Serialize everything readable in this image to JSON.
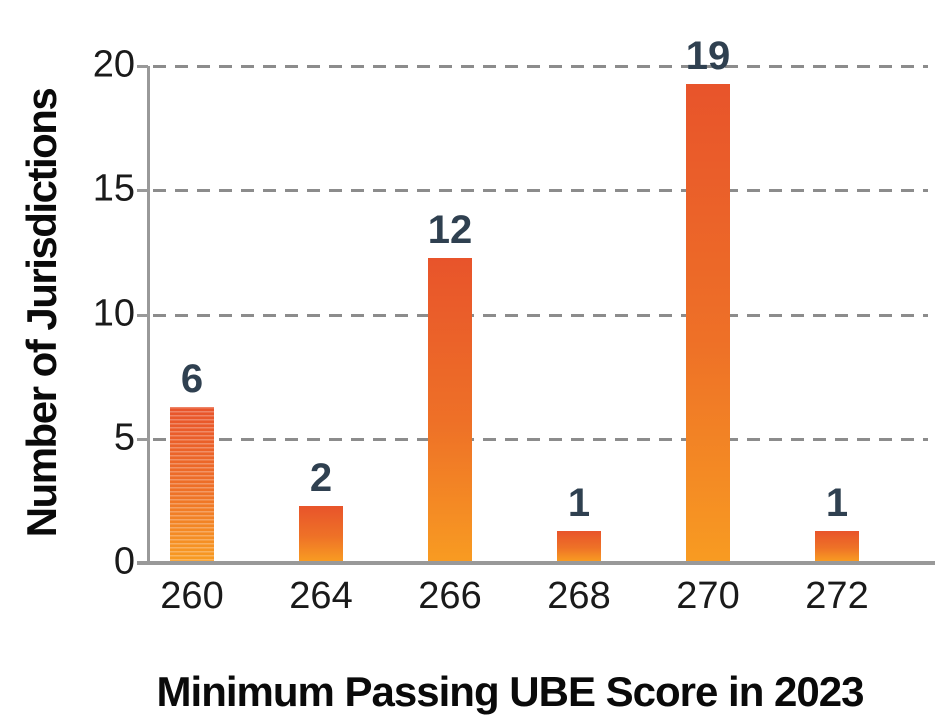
{
  "chart_data": {
    "type": "bar",
    "title": "",
    "categories": [
      "260",
      "264",
      "266",
      "268",
      "270",
      "272"
    ],
    "values": [
      6,
      2,
      12,
      1,
      19,
      1
    ],
    "data_labels": [
      "6",
      "2",
      "12",
      "1",
      "19",
      "1"
    ],
    "xlabel": "Minimum Passing UBE Score in 2023",
    "ylabel": "Number of Jurisdictions",
    "y_ticks": [
      0,
      5,
      10,
      15,
      20
    ],
    "ylim": [
      0,
      20
    ],
    "grid": "horizontal-dashed",
    "legend": "none",
    "colors": {
      "bar_gradient_top": "#e8542b",
      "bar_gradient_middle": "#ee7127",
      "bar_gradient_bottom": "#f89b22",
      "data_label": "#2f4050",
      "axis": "#999999",
      "gridline": "#8c8c8c",
      "tick_text": "#1a1a1a",
      "title_text": "#0a0a0a",
      "background": "#ffffff"
    },
    "striped_bar_category": "260"
  }
}
